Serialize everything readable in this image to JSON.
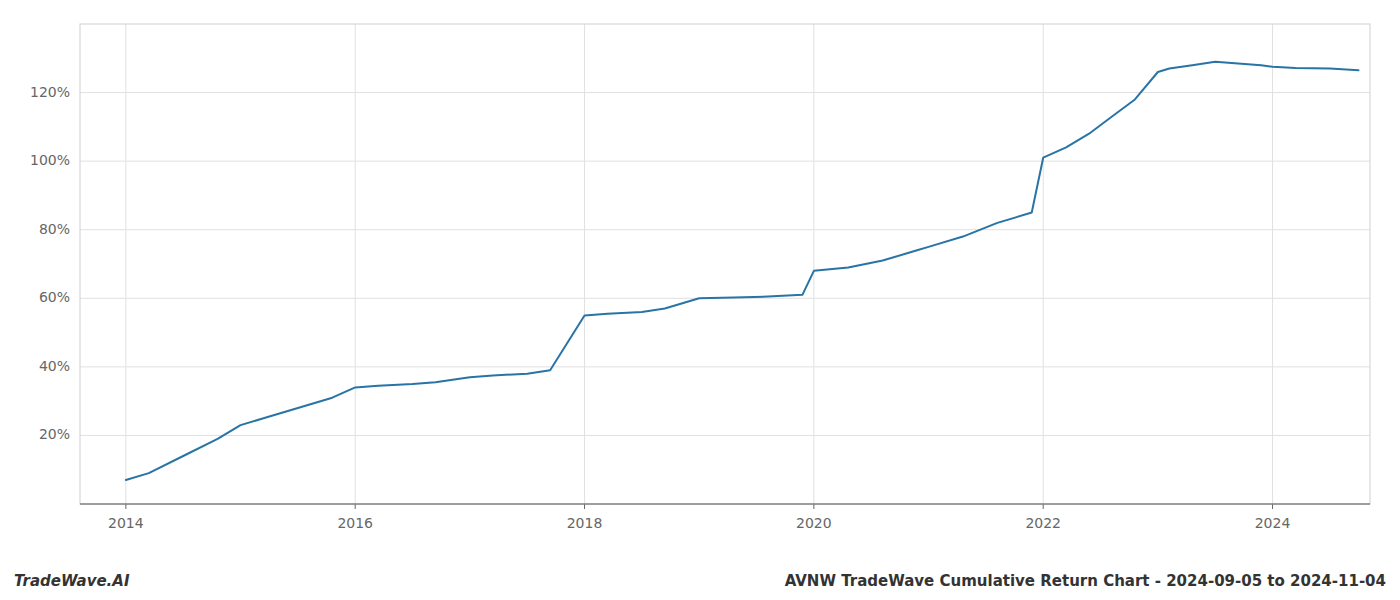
{
  "chart_data": {
    "type": "line",
    "title": "AVNW TradeWave Cumulative Return Chart - 2024-09-05 to 2024-11-04",
    "annotations": [
      "TradeWave.AI"
    ],
    "color": "#2874a6",
    "x": [
      2014.0,
      2014.2,
      2014.5,
      2014.8,
      2015.0,
      2015.2,
      2015.5,
      2015.8,
      2016.0,
      2016.2,
      2016.5,
      2016.7,
      2017.0,
      2017.2,
      2017.5,
      2017.7,
      2018.0,
      2018.2,
      2018.5,
      2018.7,
      2019.0,
      2019.3,
      2019.6,
      2019.9,
      2020.0,
      2020.3,
      2020.6,
      2020.9,
      2021.0,
      2021.3,
      2021.6,
      2021.9,
      2022.0,
      2022.2,
      2022.4,
      2022.6,
      2022.8,
      2023.0,
      2023.1,
      2023.3,
      2023.5,
      2023.7,
      2023.9,
      2024.0,
      2024.2,
      2024.5,
      2024.75
    ],
    "values": [
      7,
      9,
      14,
      19,
      23,
      25,
      28,
      31,
      34,
      34.5,
      35,
      35.5,
      37,
      37.5,
      38,
      39,
      55,
      55.5,
      56,
      57,
      60,
      60.2,
      60.5,
      61,
      68,
      69,
      71,
      74,
      75,
      78,
      82,
      85,
      101,
      104,
      108,
      113,
      118,
      126,
      127,
      128,
      129,
      128.5,
      128,
      127.5,
      127.2,
      127,
      126.5
    ],
    "xlim": [
      2013.6,
      2024.85
    ],
    "ylim": [
      0,
      140
    ],
    "xticks": [
      2014,
      2016,
      2018,
      2020,
      2022,
      2024
    ],
    "yticks": [
      {
        "value": 20,
        "label": "20%"
      },
      {
        "value": 40,
        "label": "40%"
      },
      {
        "value": 60,
        "label": "60%"
      },
      {
        "value": 80,
        "label": "80%"
      },
      {
        "value": 100,
        "label": "100%"
      },
      {
        "value": 120,
        "label": "120%"
      }
    ],
    "grid": true
  }
}
